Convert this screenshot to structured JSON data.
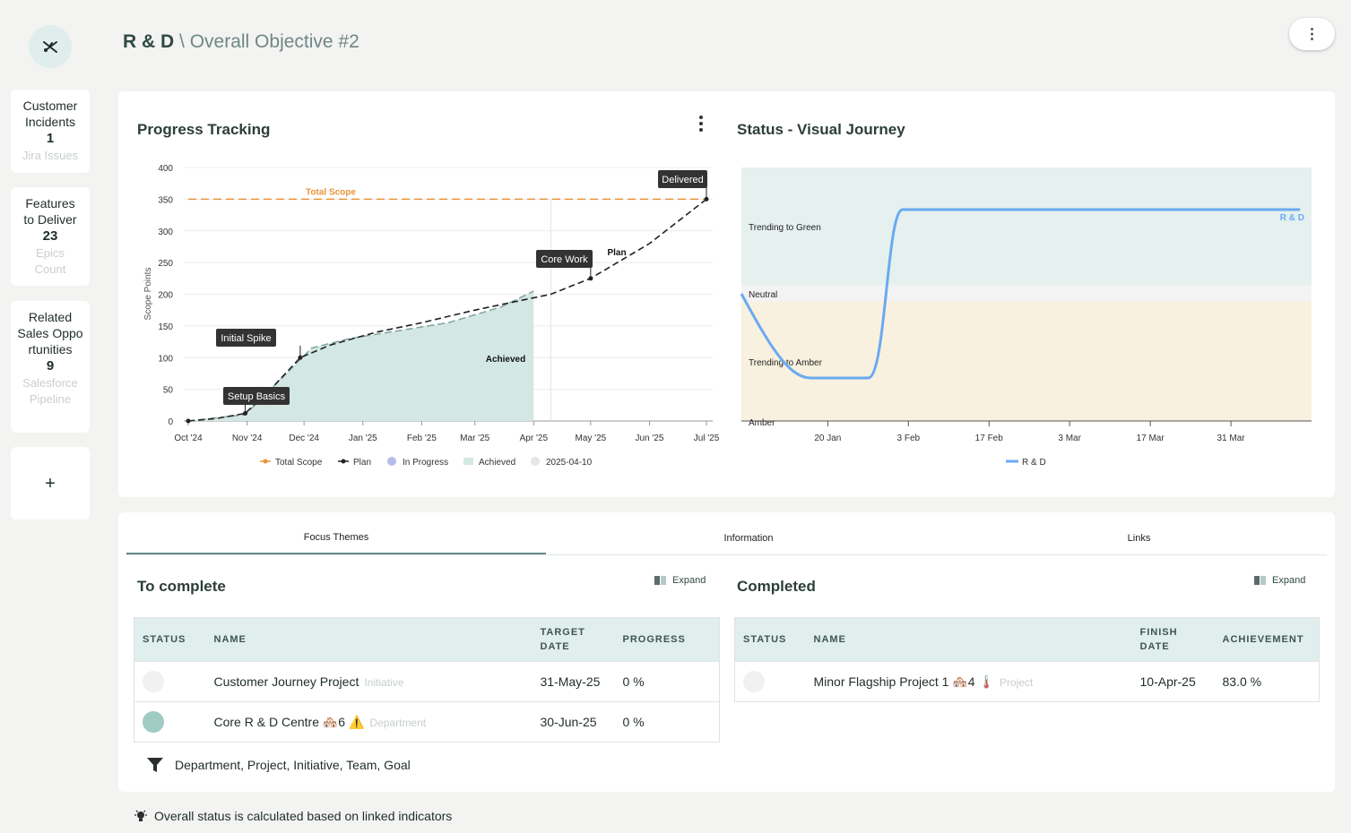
{
  "header": {
    "org": "R & D",
    "separator": "\\",
    "title": "Overall Objective #2",
    "menu_icon": "⋮"
  },
  "sidebar": {
    "cards": [
      {
        "line1": "Customer",
        "line2": "Incidents",
        "value": "1",
        "sub1": "Jira Issues",
        "sub2": ""
      },
      {
        "line1": "Features",
        "line2": "to Deliver",
        "value": "23",
        "sub1": "Epics",
        "sub2": "Count"
      },
      {
        "line1": "Related",
        "line2": "Sales Opportunities",
        "value": "9",
        "sub1": "Salesforce",
        "sub2": "Pipeline"
      }
    ],
    "add_label": "+"
  },
  "progress": {
    "title": "Progress Tracking",
    "ylabel": "Scope Points",
    "x_ticks": [
      "Oct '24",
      "Nov '24",
      "Dec '24",
      "Jan '25",
      "Feb '25",
      "Mar '25",
      "Apr '25",
      "May '25",
      "Jun '25",
      "Jul '25"
    ],
    "y_ticks": [
      "0",
      "50",
      "100",
      "150",
      "200",
      "250",
      "300",
      "350",
      "400"
    ],
    "annotations": {
      "total_scope": "Total Scope",
      "plan": "Plan",
      "achieved": "Achieved"
    },
    "callouts": [
      "Setup Basics",
      "Initial Spike",
      "Core Work",
      "Delivered"
    ],
    "legend": [
      "Total Scope",
      "Plan",
      "In Progress",
      "Achieved",
      "2025-04-10"
    ]
  },
  "journey": {
    "title": "Status - Visual Journey",
    "bands": [
      "Trending to Green",
      "Neutral",
      "Trending to Amber",
      "Amber"
    ],
    "x_ticks": [
      "20 Jan",
      "3 Feb",
      "17 Feb",
      "3 Mar",
      "17 Mar",
      "31 Mar"
    ],
    "series_label": "R & D",
    "legend": [
      "R & D"
    ]
  },
  "chart_data": [
    {
      "type": "line",
      "title": "Progress Tracking",
      "xlabel": "",
      "ylabel": "Scope Points",
      "ylim": [
        0,
        400
      ],
      "x_range": [
        "2024-10-01",
        "2025-07-01"
      ],
      "series": [
        {
          "name": "Total Scope",
          "color": "#e8943a",
          "style": "dashed",
          "points": [
            [
              "2024-10-01",
              350
            ],
            [
              "2025-07-01",
              350
            ]
          ]
        },
        {
          "name": "Plan",
          "color": "#222222",
          "style": "dashed",
          "points": [
            [
              "2024-10-01",
              0
            ],
            [
              "2024-10-16",
              4
            ],
            [
              "2024-10-31",
              12
            ],
            [
              "2024-11-15",
              55
            ],
            [
              "2024-11-29",
              100
            ],
            [
              "2024-12-15",
              120
            ],
            [
              "2025-01-08",
              140
            ],
            [
              "2025-02-01",
              155
            ],
            [
              "2025-03-01",
              175
            ],
            [
              "2025-04-10",
              200
            ],
            [
              "2025-05-01",
              225
            ],
            [
              "2025-06-01",
              280
            ],
            [
              "2025-07-01",
              350
            ]
          ]
        },
        {
          "name": "Achieved",
          "color": "#cfe6e2",
          "style": "area",
          "points": [
            [
              "2024-10-01",
              0
            ],
            [
              "2024-10-31",
              10
            ],
            [
              "2024-11-20",
              70
            ],
            [
              "2024-12-05",
              115
            ],
            [
              "2024-12-25",
              130
            ],
            [
              "2025-01-25",
              145
            ],
            [
              "2025-02-15",
              155
            ],
            [
              "2025-03-15",
              180
            ],
            [
              "2025-04-01",
              205
            ]
          ]
        }
      ],
      "markers": [
        {
          "label": "Setup Basics",
          "date": "2024-10-31",
          "value": 12
        },
        {
          "label": "Initial Spike",
          "date": "2024-11-29",
          "value": 100
        },
        {
          "label": "Core Work",
          "date": "2025-05-01",
          "value": 225
        },
        {
          "label": "Delivered",
          "date": "2025-07-01",
          "value": 350
        }
      ],
      "today_line": "2025-04-10",
      "legend_position": "bottom"
    },
    {
      "type": "line",
      "title": "Status - Visual Journey",
      "x_range": [
        "2025-01-05",
        "2025-04-14"
      ],
      "bands": [
        "Amber",
        "Trending to Amber",
        "Neutral",
        "Trending to Green"
      ],
      "series": [
        {
          "name": "R & D",
          "color": "#6aaaf0",
          "points": [
            [
              "2025-01-05",
              "Neutral"
            ],
            [
              "2025-01-17",
              "Trending to Amber"
            ],
            [
              "2025-01-27",
              "Trending to Amber"
            ],
            [
              "2025-02-02",
              "Trending to Green"
            ],
            [
              "2025-04-12",
              "Trending to Green"
            ]
          ]
        }
      ],
      "legend_position": "bottom"
    }
  ],
  "tabs": [
    "Focus Themes",
    "Information",
    "Links"
  ],
  "todo": {
    "title": "To complete",
    "expand": "Expand",
    "columns": [
      "STATUS",
      "NAME",
      "TARGET DATE",
      "PROGRESS"
    ],
    "rows": [
      {
        "name": "Customer Journey Project",
        "type": "Initiative",
        "date": "31-May-25",
        "progress": "0 %"
      },
      {
        "name": "Core R & D Centre 🏘️6 ⚠️",
        "type": "Department",
        "date": "30-Jun-25",
        "progress": "0 %"
      }
    ]
  },
  "done": {
    "title": "Completed",
    "expand": "Expand",
    "columns": [
      "STATUS",
      "NAME",
      "FINISH DATE",
      "ACHIEVEMENT"
    ],
    "rows": [
      {
        "name": "Minor Flagship Project 1 🏘️4 🌡️",
        "type": "Project",
        "date": "10-Apr-25",
        "achievement": "83.0 %"
      }
    ]
  },
  "filter_text": "Department, Project, Initiative, Team, Goal",
  "footer_text": "Overall status is calculated based on linked indicators"
}
